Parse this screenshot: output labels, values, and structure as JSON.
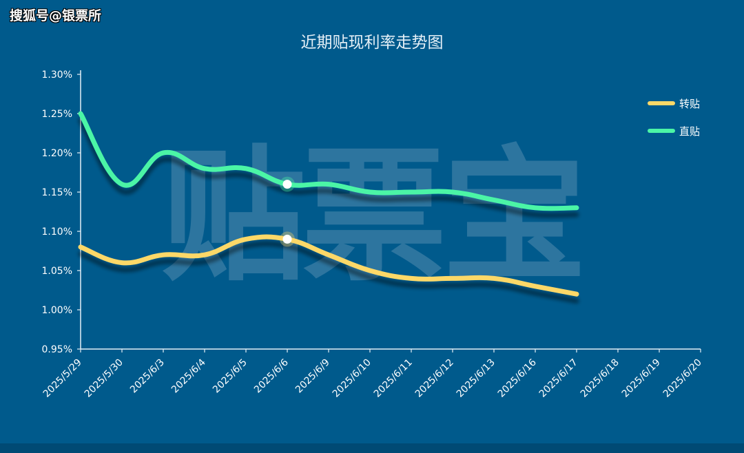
{
  "source_label": "搜狐号@银票所",
  "watermark_text": "贴票宝",
  "chart_data": {
    "type": "line",
    "title": "近期贴现利率走势图",
    "xlabel": "",
    "ylabel": "",
    "categories": [
      "2025/5/29",
      "2025/5/30",
      "2025/6/3",
      "2025/6/4",
      "2025/6/5",
      "2025/6/6",
      "2025/6/9",
      "2025/6/10",
      "2025/6/11",
      "2025/6/12",
      "2025/6/13",
      "2025/6/16",
      "2025/6/17",
      "2025/6/18",
      "2025/6/19",
      "2025/6/20"
    ],
    "ylim": [
      0.95,
      1.3
    ],
    "yticks": [
      "0.95%",
      "1.00%",
      "1.05%",
      "1.10%",
      "1.15%",
      "1.20%",
      "1.25%",
      "1.30%"
    ],
    "y_tick_values": [
      0.95,
      1.0,
      1.05,
      1.1,
      1.15,
      1.2,
      1.25,
      1.3
    ],
    "grid": false,
    "legend_position": "top-right",
    "highlighted_category": "2025/6/6",
    "series": [
      {
        "name": "转贴",
        "color": "#fdd868",
        "values": [
          1.08,
          1.06,
          1.07,
          1.07,
          1.09,
          1.09,
          1.07,
          1.05,
          1.04,
          1.04,
          1.04,
          1.03,
          1.02,
          null,
          null,
          null
        ]
      },
      {
        "name": "直贴",
        "color": "#4bf5a6",
        "values": [
          1.25,
          1.16,
          1.2,
          1.18,
          1.18,
          1.16,
          1.16,
          1.15,
          1.15,
          1.15,
          1.14,
          1.13,
          1.13,
          null,
          null,
          null
        ]
      }
    ]
  },
  "colors": {
    "background": "#005a8c",
    "axis": "#e6f0f7",
    "text": "#ffffff"
  }
}
